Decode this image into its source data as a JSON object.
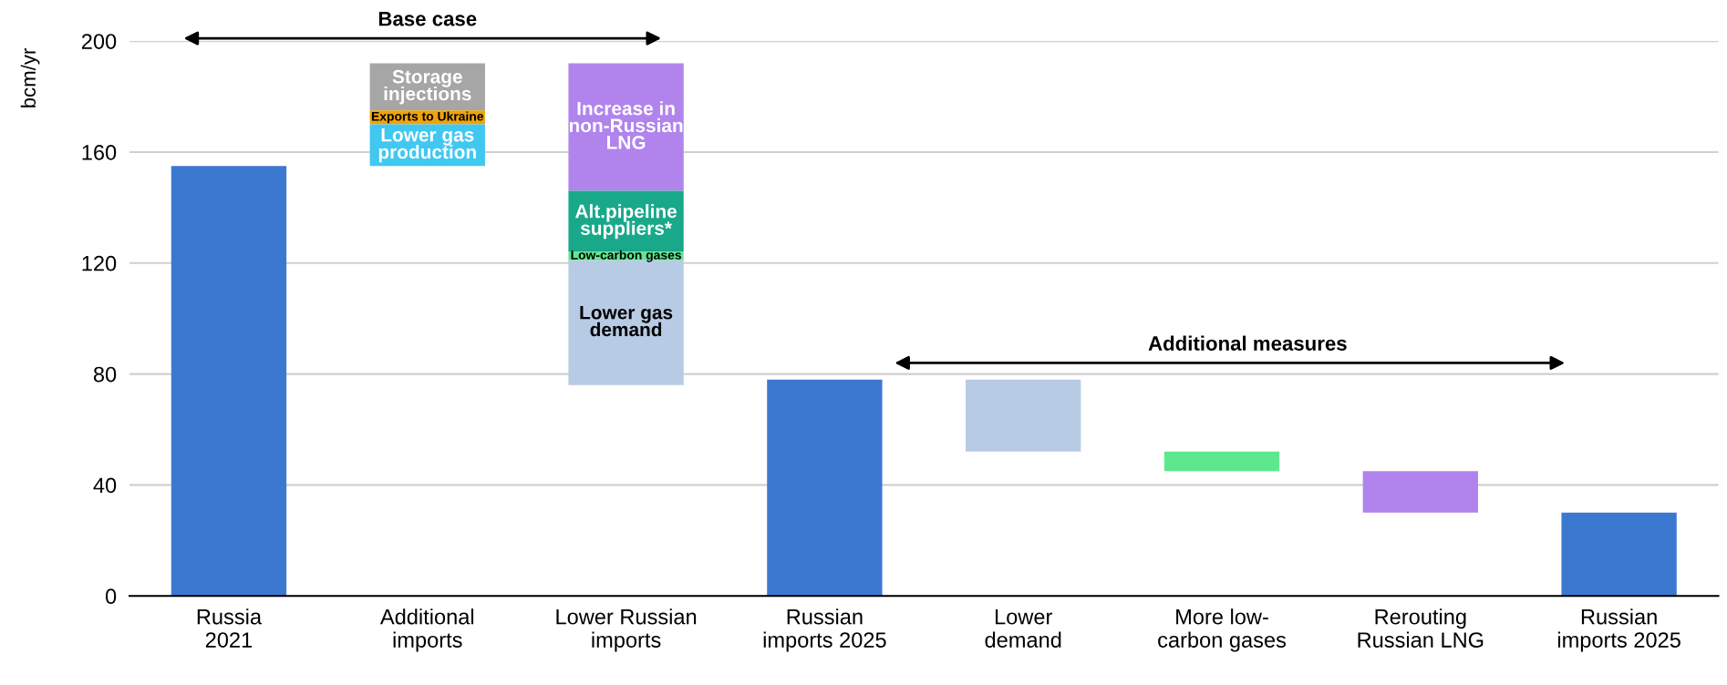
{
  "chart_data": {
    "type": "bar",
    "ylabel": "bcm/yr",
    "categories": [
      "Russia 2021",
      "Additional imports",
      "Lower Russian imports",
      "Russian imports 2025",
      "Lower demand",
      "More low-carbon gases",
      "Rerouting Russian LNG",
      "Russian imports 2025"
    ],
    "series": [
      {
        "color": "#3c78d0",
        "values": [
          155,
          null,
          null,
          78,
          null,
          null,
          null,
          30
        ],
        "base": [
          0,
          null,
          null,
          0,
          null,
          null,
          null,
          0
        ]
      },
      {
        "name": "Storage\ninjections",
        "color": "#a6a6a6",
        "values": [
          null,
          17,
          null,
          null,
          null,
          null,
          null,
          null
        ],
        "base": [
          null,
          175,
          null,
          null,
          null,
          null,
          null,
          null
        ]
      },
      {
        "name": "Exports to Ukraine",
        "color": "#f0a30a",
        "values": [
          null,
          5,
          null,
          null,
          null,
          null,
          null,
          null
        ],
        "base": [
          null,
          170,
          null,
          null,
          null,
          null,
          null,
          null
        ]
      },
      {
        "name": "Lower gas\nproduction",
        "color": "#41c8f0",
        "values": [
          null,
          15,
          null,
          null,
          null,
          null,
          null,
          null
        ],
        "base": [
          null,
          155,
          null,
          null,
          null,
          null,
          null,
          null
        ]
      },
      {
        "name": "Increase in\nnon-Russian\nLNG",
        "color": "#b084ec",
        "values": [
          null,
          null,
          46,
          null,
          null,
          null,
          null,
          null
        ],
        "base": [
          null,
          null,
          146,
          null,
          null,
          null,
          null,
          null
        ]
      },
      {
        "name": "Alt.pipeline\nsuppliers*",
        "color": "#1aa88a",
        "values": [
          null,
          null,
          22,
          null,
          null,
          null,
          null,
          null
        ],
        "base": [
          null,
          null,
          124,
          null,
          null,
          null,
          null,
          null
        ]
      },
      {
        "name": "Low-carbon gases",
        "color": "#5ee88e",
        "values": [
          null,
          null,
          3,
          null,
          null,
          null,
          null,
          null
        ],
        "base": [
          null,
          null,
          121,
          null,
          null,
          null,
          null,
          null
        ]
      },
      {
        "name": "Lower gas\ndemand",
        "color": "#b8cbe4",
        "values": [
          null,
          null,
          45,
          null,
          null,
          null,
          null,
          null
        ],
        "base": [
          null,
          null,
          76,
          null,
          null,
          null,
          null,
          null
        ]
      },
      {
        "color": "#b8cbe4",
        "values": [
          null,
          null,
          null,
          null,
          26,
          null,
          null,
          null
        ],
        "base": [
          null,
          null,
          null,
          null,
          52,
          null,
          null,
          null
        ]
      },
      {
        "color": "#5ee88e",
        "values": [
          null,
          null,
          null,
          null,
          null,
          7,
          null,
          null
        ],
        "base": [
          null,
          null,
          null,
          null,
          null,
          45,
          null,
          null
        ]
      },
      {
        "color": "#b084ec",
        "values": [
          null,
          null,
          null,
          null,
          null,
          null,
          15,
          null
        ],
        "base": [
          null,
          null,
          null,
          null,
          null,
          null,
          30,
          null
        ]
      }
    ],
    "annotations": [
      "Base case",
      "Additional measures"
    ],
    "ylim": [
      0,
      200
    ],
    "yticks": [
      0,
      40,
      80,
      120,
      160,
      200
    ],
    "grid": "y"
  }
}
